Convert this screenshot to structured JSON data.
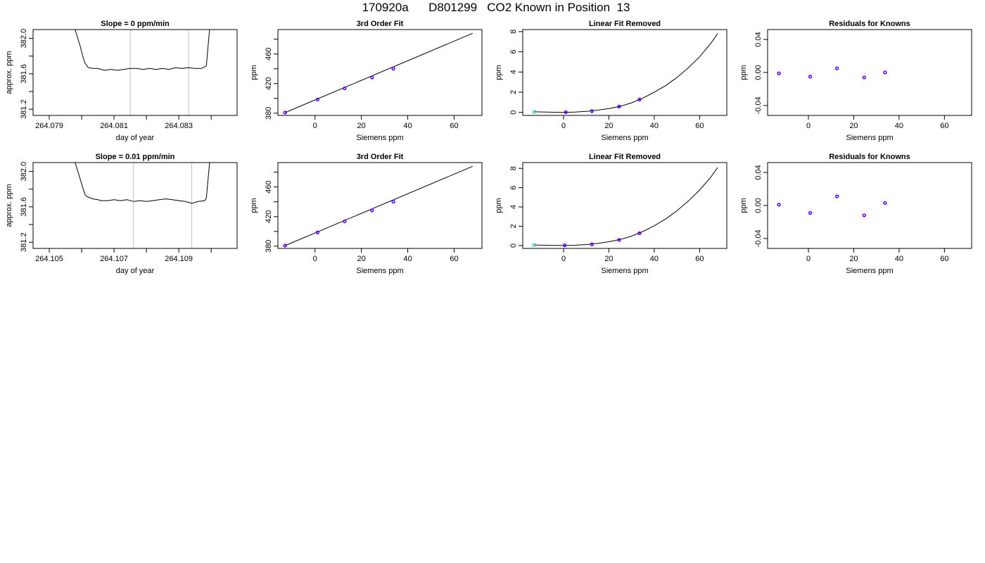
{
  "page_title": "170920a      D801299   CO2 Known in Position  13",
  "colors": {
    "axis": "#000000",
    "line": "#000000",
    "vline": "#bfbfbf",
    "point_blue": "#0000ff",
    "point_magenta": "#ff00ff",
    "point_cyan": "#00c0c0"
  },
  "chart_data": [
    {
      "type": "line",
      "title": "Slope =  0  ppm/min",
      "xlabel": "day of year",
      "ylabel": "approx. ppm",
      "xlim": [
        264.0785,
        264.0848
      ],
      "ylim": [
        381.13,
        382.1
      ],
      "xticks": [
        264.079,
        264.08,
        264.081,
        264.082,
        264.083,
        264.084
      ],
      "xtick_labels": [
        "264.079",
        "",
        "264.081",
        "",
        "264.083",
        ""
      ],
      "yticks": [
        381.2,
        381.4,
        381.6,
        381.8,
        382.0
      ],
      "ytick_labels": [
        "381.2",
        "",
        "381.6",
        "",
        "382.0"
      ],
      "vlines": [
        264.0815,
        264.0833
      ],
      "x": [
        264.0798,
        264.07995,
        264.08005,
        264.0801,
        264.08015,
        264.0802,
        264.08035,
        264.0805,
        264.0806,
        264.0807,
        264.0809,
        264.0811,
        264.0813,
        264.0815,
        264.0817,
        264.0819,
        264.0821,
        264.0823,
        264.0825,
        264.0827,
        264.0829,
        264.0831,
        264.0833,
        264.0835,
        264.0837,
        264.08385,
        264.0839,
        264.08395
      ],
      "y": [
        382.1,
        381.92,
        381.78,
        381.72,
        381.7,
        381.67,
        381.66,
        381.66,
        381.65,
        381.64,
        381.65,
        381.64,
        381.65,
        381.66,
        381.66,
        381.65,
        381.66,
        381.65,
        381.66,
        381.65,
        381.67,
        381.66,
        381.67,
        381.66,
        381.66,
        381.69,
        381.9,
        382.1
      ]
    },
    {
      "type": "scatter",
      "title": "3rd Order Fit",
      "xlabel": "Siemens ppm",
      "ylabel": "ppm",
      "xlim": [
        -16,
        72
      ],
      "ylim": [
        377,
        493
      ],
      "xticks": [
        0,
        20,
        40,
        60
      ],
      "xtick_labels": [
        "0",
        "20",
        "40",
        "60"
      ],
      "yticks": [
        380,
        400,
        420,
        440,
        460,
        480
      ],
      "ytick_labels": [
        "380",
        "",
        "420",
        "",
        "460",
        ""
      ],
      "fit": [
        [
          -12.9,
          380.8
        ],
        [
          68,
          488.0
        ]
      ],
      "points": {
        "x": [
          -12.9,
          1.1,
          12.8,
          24.6,
          33.8
        ],
        "y": [
          380.8,
          398.5,
          413.6,
          428.3,
          440.1
        ]
      }
    },
    {
      "type": "scatter",
      "title": "Linear Fit Removed",
      "xlabel": "Siemens ppm",
      "ylabel": "ppm",
      "xlim": [
        -18,
        72
      ],
      "ylim": [
        -0.3,
        8.2
      ],
      "xticks": [
        0,
        20,
        40,
        60
      ],
      "xtick_labels": [
        "0",
        "20",
        "40",
        "60"
      ],
      "yticks": [
        0,
        2,
        4,
        6,
        8
      ],
      "ytick_labels": [
        "0",
        "2",
        "4",
        "6",
        "8"
      ],
      "fit": {
        "x": [
          -13,
          -6,
          0,
          5,
          10,
          15,
          20,
          25,
          30,
          35,
          40,
          45,
          50,
          55,
          60,
          65,
          68
        ],
        "y": [
          0.06,
          0.02,
          0.0,
          0.03,
          0.1,
          0.22,
          0.38,
          0.6,
          0.95,
          1.42,
          2.0,
          2.65,
          3.45,
          4.4,
          5.5,
          6.85,
          7.8
        ]
      },
      "points": {
        "x": [
          -13,
          1,
          12.5,
          24.5,
          33.5
        ],
        "y": [
          0.05,
          0.02,
          0.12,
          0.58,
          1.27
        ]
      }
    },
    {
      "type": "scatter",
      "title": "Residuals for Knowns",
      "xlabel": "Siemens ppm",
      "ylabel": "ppm",
      "xlim": [
        -18,
        72
      ],
      "ylim": [
        -0.052,
        0.052
      ],
      "xticks": [
        0,
        20,
        40,
        60
      ],
      "xtick_labels": [
        "0",
        "20",
        "40",
        "60"
      ],
      "yticks": [
        -0.04,
        0.0,
        0.04
      ],
      "ytick_labels": [
        "-0.04",
        "0.00",
        "0.04"
      ],
      "points": {
        "x": [
          -13,
          0.8,
          12.6,
          24.6,
          33.8
        ],
        "y": [
          -0.001,
          -0.005,
          0.005,
          -0.006,
          0.0
        ]
      }
    },
    {
      "type": "line",
      "title": "Slope =  0.01  ppm/min",
      "xlabel": "day of year",
      "ylabel": "approx. ppm",
      "xlim": [
        264.1045,
        264.1108
      ],
      "ylim": [
        381.13,
        382.1
      ],
      "xticks": [
        264.105,
        264.106,
        264.107,
        264.108,
        264.109,
        264.11
      ],
      "xtick_labels": [
        "264.105",
        "",
        "264.107",
        "",
        "264.109",
        ""
      ],
      "yticks": [
        381.2,
        381.4,
        381.6,
        381.8,
        382.0
      ],
      "ytick_labels": [
        "381.2",
        "",
        "381.6",
        "",
        "382.0"
      ],
      "vlines": [
        264.1076,
        264.1094
      ],
      "x": [
        264.1058,
        264.10595,
        264.10605,
        264.1061,
        264.10615,
        264.1062,
        264.10635,
        264.1065,
        264.1066,
        264.1068,
        264.107,
        264.1072,
        264.1074,
        264.1076,
        264.1078,
        264.108,
        264.1082,
        264.1084,
        264.1086,
        264.1088,
        264.109,
        264.1092,
        264.1094,
        264.1096,
        264.1098,
        264.10985,
        264.1099,
        264.10995
      ],
      "y": [
        382.1,
        381.92,
        381.8,
        381.74,
        381.72,
        381.71,
        381.69,
        381.68,
        381.67,
        381.67,
        381.68,
        381.67,
        381.68,
        381.66,
        381.67,
        381.66,
        381.67,
        381.68,
        381.69,
        381.68,
        381.67,
        381.66,
        381.64,
        381.66,
        381.67,
        381.7,
        381.9,
        382.1
      ]
    },
    {
      "type": "scatter",
      "title": "3rd Order Fit",
      "xlabel": "Siemens ppm",
      "ylabel": "ppm",
      "xlim": [
        -16,
        72
      ],
      "ylim": [
        377,
        493
      ],
      "xticks": [
        0,
        20,
        40,
        60
      ],
      "xtick_labels": [
        "0",
        "20",
        "40",
        "60"
      ],
      "yticks": [
        380,
        400,
        420,
        440,
        460,
        480
      ],
      "ytick_labels": [
        "380",
        "",
        "420",
        "",
        "460",
        ""
      ],
      "fit": [
        [
          -12.9,
          380.8
        ],
        [
          68,
          488.0
        ]
      ],
      "points": {
        "x": [
          -12.9,
          1.1,
          12.8,
          24.6,
          33.8
        ],
        "y": [
          380.8,
          398.5,
          413.6,
          428.3,
          440.1
        ]
      }
    },
    {
      "type": "scatter",
      "title": "Linear Fit Removed",
      "xlabel": "Siemens ppm",
      "ylabel": "ppm",
      "xlim": [
        -18,
        72
      ],
      "ylim": [
        -0.3,
        8.6
      ],
      "xticks": [
        0,
        20,
        40,
        60
      ],
      "xtick_labels": [
        "0",
        "20",
        "40",
        "60"
      ],
      "yticks": [
        0,
        2,
        4,
        6,
        8
      ],
      "ytick_labels": [
        "0",
        "2",
        "4",
        "6",
        "8"
      ],
      "fit": {
        "x": [
          -13,
          -6,
          0,
          5,
          10,
          15,
          20,
          25,
          30,
          35,
          40,
          45,
          50,
          55,
          60,
          65,
          68
        ],
        "y": [
          0.06,
          0.02,
          0.0,
          0.03,
          0.1,
          0.22,
          0.39,
          0.63,
          0.98,
          1.45,
          2.05,
          2.75,
          3.6,
          4.6,
          5.75,
          7.1,
          8.1
        ]
      },
      "points": {
        "x": [
          -13,
          0.5,
          12.5,
          24.5,
          33.5
        ],
        "y": [
          0.05,
          0.02,
          0.12,
          0.58,
          1.27
        ]
      }
    },
    {
      "type": "scatter",
      "title": "Residuals for Knowns",
      "xlabel": "Siemens ppm",
      "ylabel": "ppm",
      "xlim": [
        -18,
        72
      ],
      "ylim": [
        -0.052,
        0.052
      ],
      "xticks": [
        0,
        20,
        40,
        60
      ],
      "xtick_labels": [
        "0",
        "20",
        "40",
        "60"
      ],
      "yticks": [
        -0.04,
        0.0,
        0.04
      ],
      "ytick_labels": [
        "-0.04",
        "0.00",
        "0.04"
      ],
      "points": {
        "x": [
          -13,
          0.8,
          12.6,
          24.6,
          33.8
        ],
        "y": [
          0.001,
          -0.009,
          0.011,
          -0.012,
          0.003
        ]
      }
    }
  ]
}
